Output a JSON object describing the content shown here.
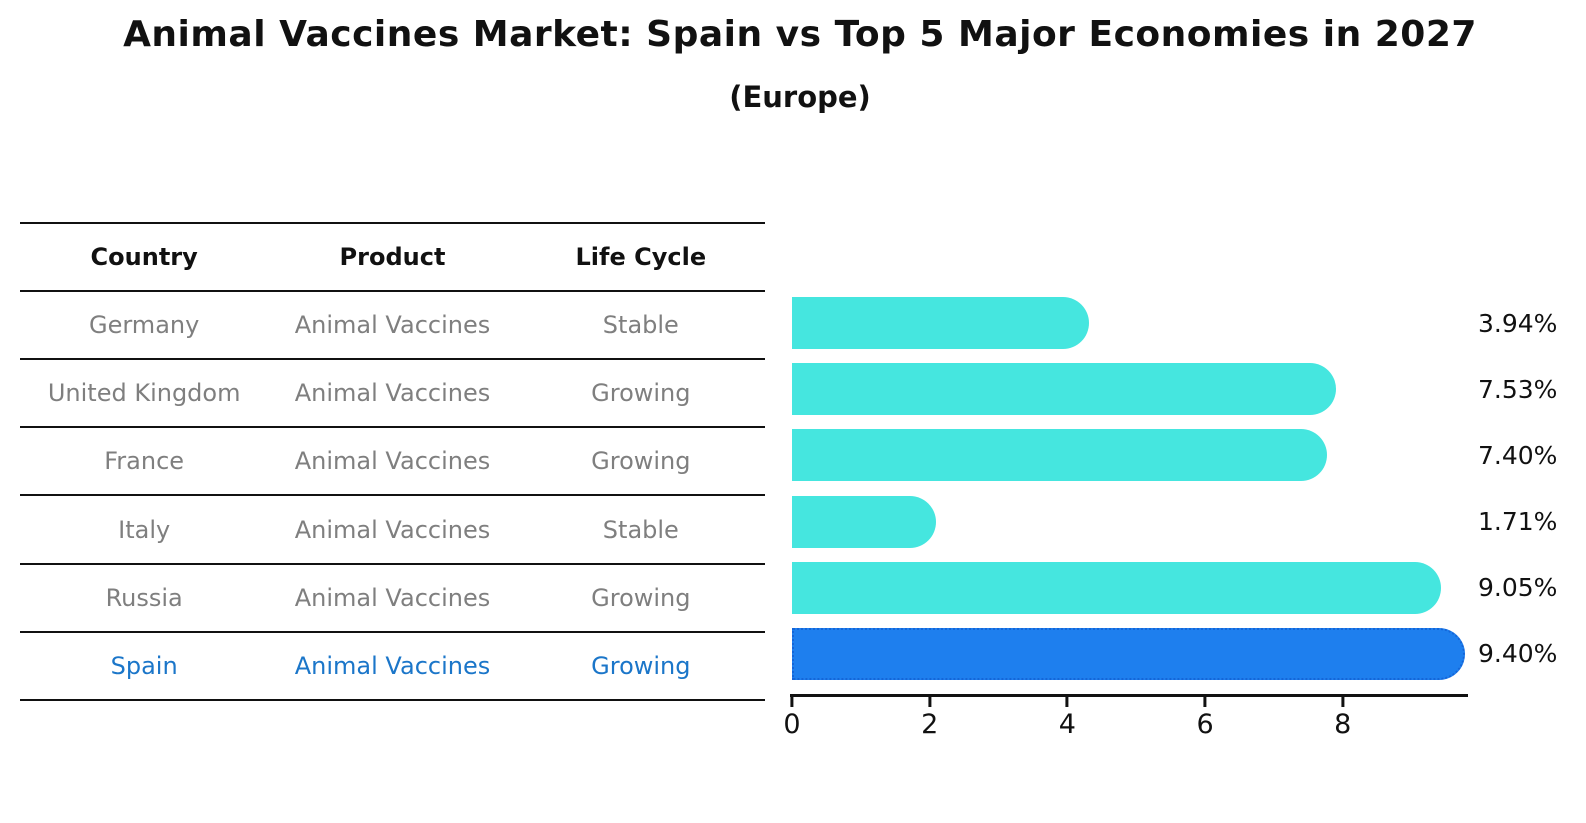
{
  "title": "Animal Vaccines Market: Spain vs Top 5 Major Economies in 2027",
  "subtitle": "(Europe)",
  "table": {
    "headers": [
      "Country",
      "Product",
      "Life Cycle"
    ],
    "rows": [
      {
        "country": "Germany",
        "product": "Animal Vaccines",
        "life_cycle": "Stable",
        "highlighted": false
      },
      {
        "country": "United Kingdom",
        "product": "Animal Vaccines",
        "life_cycle": "Growing",
        "highlighted": false
      },
      {
        "country": "France",
        "product": "Animal Vaccines",
        "life_cycle": "Growing",
        "highlighted": false
      },
      {
        "country": "Italy",
        "product": "Animal Vaccines",
        "life_cycle": "Stable",
        "highlighted": false
      },
      {
        "country": "Russia",
        "product": "Animal Vaccines",
        "life_cycle": "Growing",
        "highlighted": false
      },
      {
        "country": "Spain",
        "product": "Animal Vaccines",
        "life_cycle": "Growing",
        "highlighted": true
      }
    ]
  },
  "chart_data": {
    "type": "bar",
    "orientation": "horizontal",
    "title": "Animal Vaccines Market: Spain vs Top 5 Major Economies in 2027 (Europe)",
    "categories": [
      "Germany",
      "United Kingdom",
      "France",
      "Italy",
      "Russia",
      "Spain"
    ],
    "values": [
      3.94,
      7.53,
      7.4,
      1.71,
      9.05,
      9.4
    ],
    "value_labels": [
      "3.94%",
      "7.53%",
      "7.40%",
      "1.71%",
      "9.05%",
      "9.40%"
    ],
    "value_suffix": "%",
    "xlabel": "",
    "ylabel": "",
    "xlim": [
      0,
      9.82
    ],
    "xticks": [
      0,
      2,
      4,
      6,
      8
    ],
    "xtick_labels": [
      "0",
      "2",
      "4",
      "6",
      "8"
    ],
    "grid": false,
    "legend": null,
    "highlight_index": 5,
    "colors": {
      "bar": "#45E6DF",
      "highlight_bar": "#1E7FEE",
      "highlight_edge": "#1465D8",
      "highlight_text": "#1B76C9",
      "row_text": "#7F7F7F",
      "axis": "#111111"
    }
  }
}
